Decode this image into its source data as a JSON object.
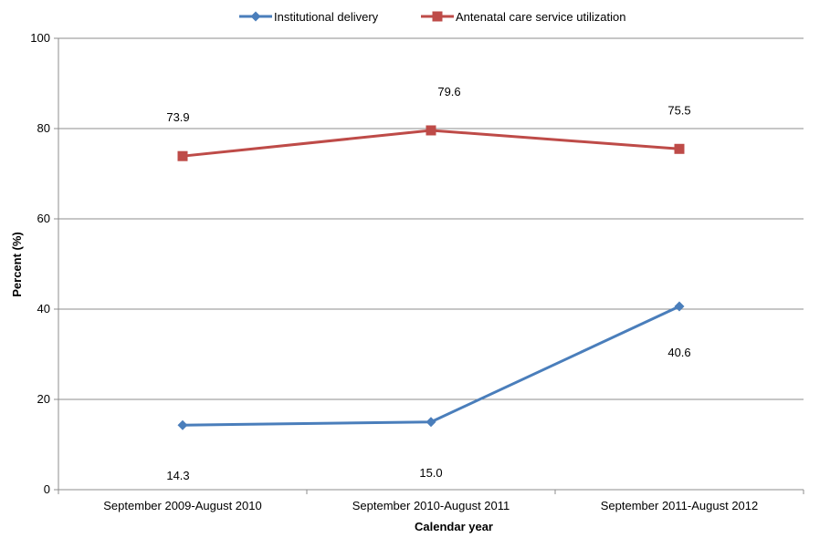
{
  "chart_data": {
    "type": "line",
    "categories": [
      "September 2009-August 2010",
      "September 2010-August 2011",
      "September 2011-August 2012"
    ],
    "series": [
      {
        "name": "Institutional delivery",
        "values": [
          14.3,
          15.0,
          40.6
        ],
        "labels": [
          "14.3",
          "15.0",
          "40.6"
        ],
        "color": "#4a7ebb",
        "marker": "diamond"
      },
      {
        "name": "Antenatal care service utilization",
        "values": [
          73.9,
          79.6,
          75.5
        ],
        "labels": [
          "73.9",
          "79.6",
          "75.5"
        ],
        "color": "#be4b48",
        "marker": "square"
      }
    ],
    "xlabel": "Calendar year",
    "ylabel": "Percent (%)",
    "ylim": [
      0,
      100
    ],
    "yticks": [
      0,
      20,
      40,
      60,
      80,
      100
    ],
    "grid": true,
    "legend": "top-center"
  }
}
